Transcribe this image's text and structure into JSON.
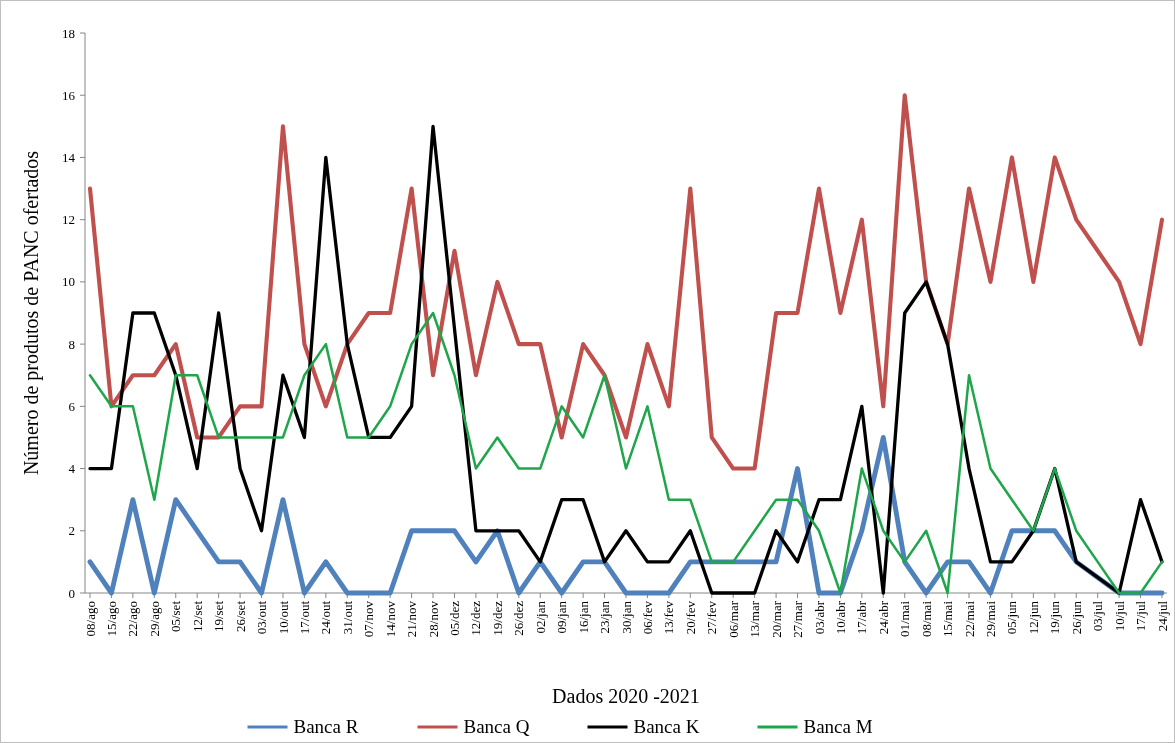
{
  "chart_data": {
    "type": "line",
    "xlabel": "Dados 2020 -2021",
    "ylabel": "Número de produtos de PANC ofertados",
    "categories": [
      "08/ago",
      "15/ago",
      "22/ago",
      "29/ago",
      "05/set",
      "12/set",
      "19/set",
      "26/set",
      "03/out",
      "10/out",
      "17/out",
      "24/out",
      "31/out",
      "07/nov",
      "14/nov",
      "21/nov",
      "28/nov",
      "05/dez",
      "12/dez",
      "19/dez",
      "26/dez",
      "02/jan",
      "09/jan",
      "16/jan",
      "23/jan",
      "30/jan",
      "06/fev",
      "13/fev",
      "20/fev",
      "27/fev",
      "06/mar",
      "13/mar",
      "20/mar",
      "27/mar",
      "03/abr",
      "10/abr",
      "17/abr",
      "24/abr",
      "01/mai",
      "08/mai",
      "15/mai",
      "22/mai",
      "29/mai",
      "05/jun",
      "12/jun",
      "19/jun",
      "26/jun",
      "03/jul",
      "10/jul",
      "17/jul",
      "24/jul"
    ],
    "series": [
      {
        "name": "Banca R",
        "color": "#4f81bd",
        "values": [
          1,
          0,
          3,
          0,
          3,
          2,
          1,
          1,
          0,
          3,
          0,
          1,
          0,
          0,
          0,
          2,
          2,
          2,
          1,
          2,
          0,
          1,
          0,
          1,
          1,
          0,
          0,
          0,
          1,
          1,
          1,
          1,
          1,
          4,
          0,
          0,
          2,
          5,
          1,
          0,
          1,
          1,
          0,
          2,
          2,
          2,
          1,
          0.5,
          0,
          0,
          0
        ]
      },
      {
        "name": "Banca Q",
        "color": "#c0504d",
        "values": [
          13,
          6,
          7,
          7,
          8,
          5,
          5,
          6,
          6,
          15,
          8,
          6,
          8,
          9,
          9,
          13,
          7,
          11,
          7,
          10,
          8,
          8,
          5,
          8,
          7,
          5,
          8,
          6,
          13,
          5,
          4,
          4,
          9,
          9,
          13,
          9,
          12,
          6,
          16,
          10,
          8,
          13,
          10,
          14,
          10,
          14,
          12,
          11,
          10,
          8,
          12
        ]
      },
      {
        "name": "Banca K",
        "color": "#000000",
        "values": [
          4,
          4,
          9,
          9,
          7,
          4,
          9,
          4,
          2,
          7,
          5,
          14,
          8,
          5,
          5,
          6,
          15,
          8.5,
          2,
          2,
          2,
          1,
          3,
          3,
          1,
          2,
          1,
          1,
          2,
          0,
          0,
          0,
          2,
          1,
          3,
          3,
          6,
          0,
          9,
          10,
          8,
          4,
          1,
          1,
          2,
          4,
          1,
          0.5,
          0,
          3,
          1
        ]
      },
      {
        "name": "Banca M",
        "color": "#1fa64a",
        "values": [
          7,
          6,
          6,
          3,
          7,
          7,
          5,
          5,
          5,
          5,
          7,
          8,
          5,
          5,
          6,
          8,
          9,
          7,
          4,
          5,
          4,
          4,
          6,
          5,
          7,
          4,
          6,
          3,
          3,
          1,
          1,
          2,
          3,
          3,
          2,
          0,
          4,
          2,
          1,
          2,
          0,
          7,
          4,
          3,
          2,
          4,
          2,
          1,
          0,
          0,
          1
        ]
      }
    ],
    "ylim": [
      0,
      18
    ],
    "yticks": [
      0,
      2,
      4,
      6,
      8,
      10,
      12,
      14,
      16,
      18
    ],
    "grid": false,
    "legend": "bottom",
    "marker": "none",
    "line_style": "solid"
  }
}
